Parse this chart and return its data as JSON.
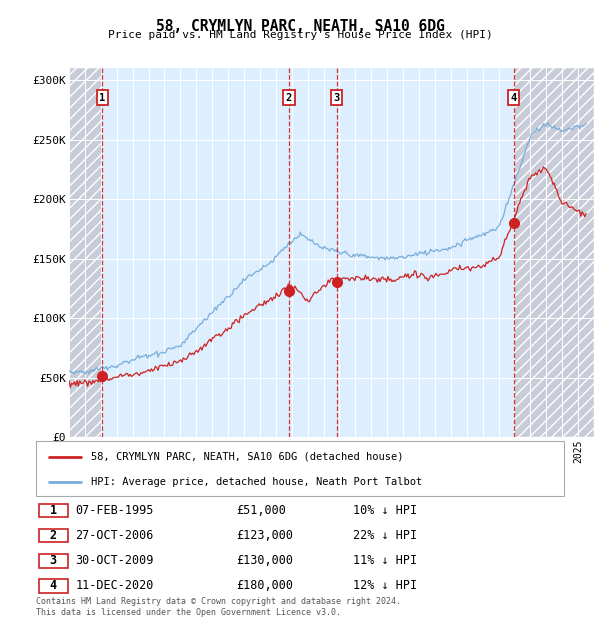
{
  "title": "58, CRYMLYN PARC, NEATH, SA10 6DG",
  "subtitle": "Price paid vs. HM Land Registry's House Price Index (HPI)",
  "ylim": [
    0,
    310000
  ],
  "yticks": [
    0,
    50000,
    100000,
    150000,
    200000,
    250000,
    300000
  ],
  "ytick_labels": [
    "£0",
    "£50K",
    "£100K",
    "£150K",
    "£200K",
    "£250K",
    "£300K"
  ],
  "hpi_color": "#7aadd9",
  "price_color": "#cc2222",
  "transactions": [
    {
      "year": 1995.1,
      "price": 51000,
      "label": "1"
    },
    {
      "year": 2006.82,
      "price": 123000,
      "label": "2"
    },
    {
      "year": 2009.83,
      "price": 130000,
      "label": "3"
    },
    {
      "year": 2020.95,
      "price": 180000,
      "label": "4"
    }
  ],
  "legend_line1": "58, CRYMLYN PARC, NEATH, SA10 6DG (detached house)",
  "legend_line2": "HPI: Average price, detached house, Neath Port Talbot",
  "footer": "Contains HM Land Registry data © Crown copyright and database right 2024.\nThis data is licensed under the Open Government Licence v3.0.",
  "table_rows": [
    [
      "1",
      "07-FEB-1995",
      "£51,000",
      "10% ↓ HPI"
    ],
    [
      "2",
      "27-OCT-2006",
      "£123,000",
      "22% ↓ HPI"
    ],
    [
      "3",
      "30-OCT-2009",
      "£130,000",
      "11% ↓ HPI"
    ],
    [
      "4",
      "11-DEC-2020",
      "£180,000",
      "12% ↓ HPI"
    ]
  ]
}
